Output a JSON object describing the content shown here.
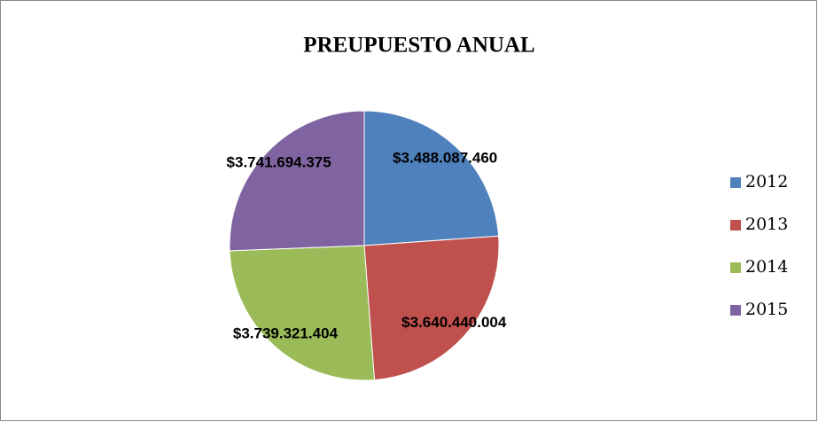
{
  "chart_data": {
    "type": "pie",
    "title": "PREUPUESTO ANUAL",
    "categories": [
      "2012",
      "2013",
      "2014",
      "2015"
    ],
    "values": [
      3488087460,
      3640440004,
      3739321404,
      3741694375
    ],
    "value_labels": [
      "$3.488.087.460",
      "$3.640.440.004",
      "$3.739.321.404",
      "$3.741.694.375"
    ],
    "colors": [
      "#4f81bd",
      "#c0504d",
      "#9bbb59",
      "#8064a2"
    ],
    "legend": "right"
  }
}
